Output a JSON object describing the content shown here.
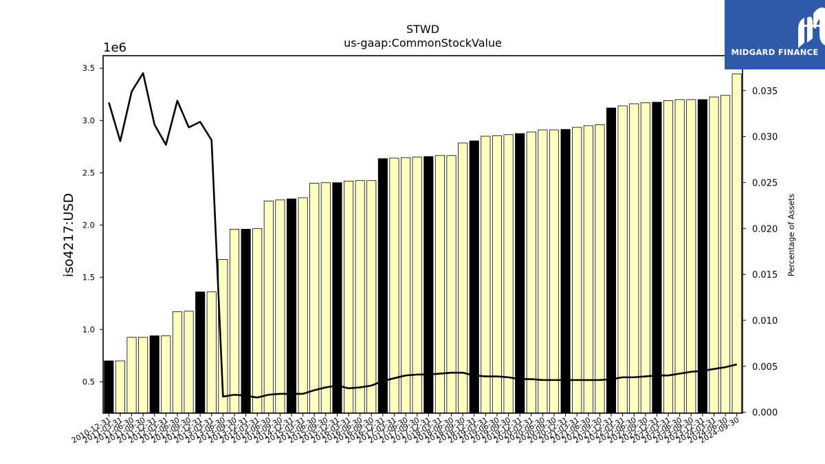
{
  "chart_data": {
    "type": "bar",
    "title": "STWD",
    "subtitle": "us-gaap:CommonStockValue",
    "ylabel": "iso4217:USD",
    "y2label": "Percentage of Assets",
    "y_offset_label": "1e6",
    "ylim": [
      200000,
      3620000
    ],
    "y2lim": [
      -0.0001,
      0.0388
    ],
    "y_ticks": [
      500000,
      1000000,
      1500000,
      2000000,
      2500000,
      3000000,
      3500000
    ],
    "y_tick_labels": [
      "0.5",
      "1.0",
      "1.5",
      "2.0",
      "2.5",
      "3.0",
      "3.5"
    ],
    "y2_ticks": [
      0.0,
      0.005,
      0.01,
      0.015,
      0.02,
      0.025,
      0.03,
      0.035
    ],
    "y2_tick_labels": [
      "0.000",
      "0.005",
      "0.010",
      "0.015",
      "0.020",
      "0.025",
      "0.030",
      "0.035"
    ],
    "categories": [
      "2010-12-31",
      "2011-03-31",
      "2011-06-30",
      "2011-09-30",
      "2011-12-31",
      "2012-03-31",
      "2012-06-30",
      "2012-09-30",
      "2012-12-31",
      "2013-03-31",
      "2013-06-30",
      "2013-09-30",
      "2013-12-31",
      "2014-03-31",
      "2014-06-30",
      "2014-09-30",
      "2014-12-31",
      "2015-03-31",
      "2015-06-30",
      "2015-09-30",
      "2015-12-31",
      "2016-03-31",
      "2016-06-30",
      "2016-09-30",
      "2016-12-31",
      "2017-03-31",
      "2017-06-30",
      "2017-09-30",
      "2017-12-31",
      "2018-03-31",
      "2018-06-30",
      "2018-09-30",
      "2018-12-31",
      "2019-03-31",
      "2019-06-30",
      "2019-09-30",
      "2019-12-31",
      "2020-03-31",
      "2020-06-30",
      "2020-09-30",
      "2020-12-31",
      "2021-03-31",
      "2021-06-30",
      "2021-09-30",
      "2021-12-31",
      "2022-03-31",
      "2022-06-30",
      "2022-09-30",
      "2022-12-31",
      "2023-03-31",
      "2023-06-30",
      "2023-09-30",
      "2023-12-31",
      "2024-03-31",
      "2024-06-30",
      "2024-09-30"
    ],
    "series": [
      {
        "kind": "bar",
        "values": [
          700000,
          700000,
          925000,
          925000,
          940000,
          940000,
          1170000,
          1175000,
          1360000,
          1360000,
          1670000,
          1960000,
          1960000,
          1965000,
          2230000,
          2240000,
          2250000,
          2260000,
          2400000,
          2405000,
          2405000,
          2420000,
          2425000,
          2425000,
          2635000,
          2640000,
          2645000,
          2650000,
          2655000,
          2665000,
          2665000,
          2785000,
          2805000,
          2850000,
          2855000,
          2865000,
          2875000,
          2890000,
          2910000,
          2910000,
          2915000,
          2935000,
          2950000,
          2960000,
          3120000,
          3140000,
          3160000,
          3170000,
          3175000,
          3190000,
          3200000,
          3200000,
          3200000,
          3225000,
          3240000,
          3445000
        ],
        "year_end_color": "#000000",
        "color": "#ffffc0"
      },
      {
        "kind": "line",
        "axis": "right",
        "color": "#000000",
        "values": [
          0.0337,
          0.0295,
          0.0349,
          0.0369,
          0.0313,
          0.0291,
          0.0339,
          0.031,
          0.0316,
          0.0296,
          0.0017,
          0.0019,
          0.0018,
          0.0016,
          0.0019,
          0.002,
          0.002,
          0.002,
          0.0024,
          0.0027,
          0.0029,
          0.0026,
          0.0027,
          0.0029,
          0.0034,
          0.0037,
          0.004,
          0.0041,
          0.0041,
          0.0042,
          0.0043,
          0.0043,
          0.004,
          0.0039,
          0.0039,
          0.0038,
          0.0036,
          0.0036,
          0.0035,
          0.0035,
          0.0035,
          0.0035,
          0.0035,
          0.0035,
          0.0036,
          0.0038,
          0.0038,
          0.0039,
          0.004,
          0.004,
          0.0042,
          0.0044,
          0.0045,
          0.0047,
          0.0049,
          0.0052
        ]
      }
    ],
    "grid": false,
    "legend": "none"
  },
  "logo": {
    "text": "MIDGARD FINANCE",
    "color": "#2f5aa8"
  }
}
